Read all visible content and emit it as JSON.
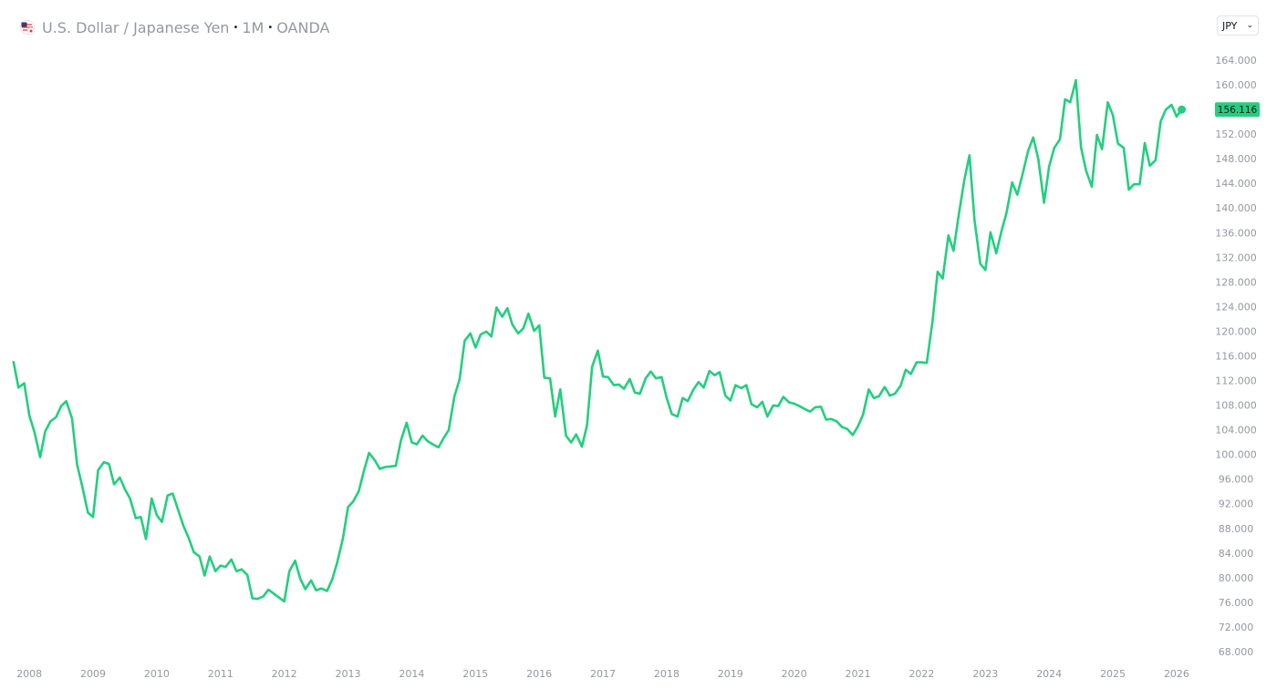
{
  "header": {
    "title": "U.S. Dollar / Japanese Yen",
    "separator": "•",
    "interval": "1M",
    "source": "OANDA"
  },
  "currency_selector": "JPY",
  "chart_data": {
    "type": "line",
    "color": "#22cf7f",
    "grid": false,
    "xlim": [
      2007.54,
      2026.43
    ],
    "ylim": [
      65.93,
      166.51
    ],
    "xticks": [
      2008,
      2009,
      2010,
      2011,
      2012,
      2013,
      2014,
      2015,
      2016,
      2017,
      2018,
      2019,
      2020,
      2021,
      2022,
      2023,
      2024,
      2025,
      2026
    ],
    "yticks": [
      {
        "value": 68,
        "label": "68.000"
      },
      {
        "value": 72,
        "label": "72.000"
      },
      {
        "value": 76,
        "label": "76.000"
      },
      {
        "value": 80,
        "label": "80.000"
      },
      {
        "value": 84,
        "label": "84.000"
      },
      {
        "value": 88,
        "label": "88.000"
      },
      {
        "value": 92,
        "label": "92.000"
      },
      {
        "value": 96,
        "label": "96.000"
      },
      {
        "value": 100,
        "label": "100.000"
      },
      {
        "value": 104,
        "label": "104.000"
      },
      {
        "value": 108,
        "label": "108.000"
      },
      {
        "value": 112,
        "label": "112.000"
      },
      {
        "value": 116,
        "label": "116.000"
      },
      {
        "value": 120,
        "label": "120.000"
      },
      {
        "value": 124,
        "label": "124.000"
      },
      {
        "value": 128,
        "label": "128.000"
      },
      {
        "value": 132,
        "label": "132.000"
      },
      {
        "value": 136,
        "label": "136.000"
      },
      {
        "value": 140,
        "label": "140.000"
      },
      {
        "value": 144,
        "label": "144.000"
      },
      {
        "value": 148,
        "label": "148.000"
      },
      {
        "value": 152,
        "label": "152.000"
      },
      {
        "value": 156,
        "label": "156.000"
      },
      {
        "value": 160,
        "label": "160.000"
      },
      {
        "value": 164,
        "label": "164.000"
      }
    ],
    "x": [
      2007.75,
      2007.83,
      2007.92,
      2008,
      2008.08,
      2008.17,
      2008.25,
      2008.33,
      2008.42,
      2008.5,
      2008.58,
      2008.67,
      2008.75,
      2008.83,
      2008.92,
      2009,
      2009.08,
      2009.17,
      2009.25,
      2009.33,
      2009.42,
      2009.5,
      2009.58,
      2009.67,
      2009.75,
      2009.83,
      2009.92,
      2010,
      2010.08,
      2010.17,
      2010.25,
      2010.33,
      2010.42,
      2010.5,
      2010.58,
      2010.67,
      2010.75,
      2010.83,
      2010.92,
      2011,
      2011.08,
      2011.17,
      2011.25,
      2011.33,
      2011.42,
      2011.5,
      2011.58,
      2011.67,
      2011.75,
      2011.83,
      2011.92,
      2012,
      2012.08,
      2012.17,
      2012.25,
      2012.33,
      2012.42,
      2012.5,
      2012.58,
      2012.67,
      2012.75,
      2012.83,
      2012.92,
      2013,
      2013.08,
      2013.17,
      2013.25,
      2013.33,
      2013.42,
      2013.5,
      2013.58,
      2013.67,
      2013.75,
      2013.83,
      2013.92,
      2014,
      2014.08,
      2014.17,
      2014.25,
      2014.33,
      2014.42,
      2014.5,
      2014.58,
      2014.67,
      2014.75,
      2014.83,
      2014.92,
      2015,
      2015.08,
      2015.17,
      2015.25,
      2015.33,
      2015.42,
      2015.5,
      2015.58,
      2015.67,
      2015.75,
      2015.83,
      2015.92,
      2016,
      2016.08,
      2016.17,
      2016.25,
      2016.33,
      2016.42,
      2016.5,
      2016.58,
      2016.67,
      2016.75,
      2016.83,
      2016.92,
      2017,
      2017.08,
      2017.17,
      2017.25,
      2017.33,
      2017.42,
      2017.5,
      2017.58,
      2017.67,
      2017.75,
      2017.83,
      2017.92,
      2018,
      2018.08,
      2018.17,
      2018.25,
      2018.33,
      2018.42,
      2018.5,
      2018.58,
      2018.67,
      2018.75,
      2018.83,
      2018.92,
      2019,
      2019.08,
      2019.17,
      2019.25,
      2019.33,
      2019.42,
      2019.5,
      2019.58,
      2019.67,
      2019.75,
      2019.83,
      2019.92,
      2020,
      2020.08,
      2020.17,
      2020.25,
      2020.33,
      2020.42,
      2020.5,
      2020.58,
      2020.67,
      2020.75,
      2020.83,
      2020.92,
      2021,
      2021.08,
      2021.17,
      2021.25,
      2021.33,
      2021.42,
      2021.5,
      2021.58,
      2021.67,
      2021.75,
      2021.83,
      2021.92,
      2022,
      2022.08,
      2022.17,
      2022.25,
      2022.33,
      2022.42,
      2022.5,
      2022.58,
      2022.67,
      2022.75,
      2022.83,
      2022.92,
      2023,
      2023.08,
      2023.17,
      2023.25,
      2023.33,
      2023.42,
      2023.5,
      2023.58,
      2023.67,
      2023.75,
      2023.83,
      2023.92,
      2024,
      2024.08,
      2024.17,
      2024.25,
      2024.33,
      2024.42,
      2024.5,
      2024.58,
      2024.67,
      2024.75,
      2024.83,
      2024.92,
      2025,
      2025.08,
      2025.17,
      2025.25,
      2025.33,
      2025.42,
      2025.5,
      2025.58,
      2025.67,
      2025.75,
      2025.83,
      2025.92,
      2026,
      2026.08
    ],
    "values": [
      115.3,
      111,
      111.7,
      106.5,
      103.8,
      99.7,
      103.9,
      105.5,
      106.2,
      108,
      108.8,
      106,
      98.5,
      95,
      90.7,
      90.0,
      97.6,
      98.9,
      98.6,
      95.3,
      96.4,
      94.5,
      93,
      89.8,
      90,
      86.4,
      93,
      90.3,
      89.2,
      93.5,
      93.8,
      91.3,
      88.5,
      86.6,
      84.3,
      83.6,
      80.5,
      83.6,
      81.2,
      82.1,
      81.9,
      83.1,
      81.2,
      81.5,
      80.6,
      76.8,
      76.7,
      77.1,
      78.2,
      77.6,
      76.9,
      76.3,
      81.2,
      82.9,
      80,
      78.3,
      79.7,
      78.1,
      78.4,
      78,
      79.8,
      82.6,
      86.5,
      91.6,
      92.5,
      94.2,
      97.5,
      100.4,
      99.2,
      97.8,
      98.1,
      98.2,
      98.3,
      102.4,
      105.3,
      102.1,
      101.8,
      103.2,
      102.3,
      101.8,
      101.3,
      102.8,
      104.1,
      109.6,
      112.3,
      118.6,
      119.8,
      117.5,
      119.6,
      120.1,
      119.3,
      124,
      122.5,
      123.9,
      121.2,
      119.8,
      120.6,
      123,
      120.2,
      121.1,
      112.6,
      112.5,
      106.3,
      110.7,
      103.2,
      102.1,
      103.4,
      101.4,
      104.9,
      114.4,
      117,
      112.8,
      112.7,
      111.4,
      111.5,
      110.8,
      112.4,
      110.2,
      110,
      112.5,
      113.6,
      112.5,
      112.7,
      109.3,
      106.7,
      106.3,
      109.3,
      108.8,
      110.7,
      111.9,
      111,
      113.7,
      113,
      113.5,
      109.7,
      108.9,
      111.4,
      110.9,
      111.4,
      108.3,
      107.8,
      108.7,
      106.3,
      108.1,
      108,
      109.5,
      108.6,
      108.4,
      108,
      107.5,
      107.1,
      107.8,
      107.9,
      105.8,
      105.9,
      105.5,
      104.6,
      104.3,
      103.3,
      104.7,
      106.6,
      110.7,
      109.3,
      109.6,
      111.1,
      109.7,
      110,
      111.3,
      113.9,
      113.2,
      115.1,
      115.1,
      115,
      121.7,
      129.8,
      128.7,
      135.7,
      133.2,
      138.9,
      144.7,
      148.7,
      138.1,
      131.1,
      130.1,
      136.2,
      132.8,
      136.3,
      139.3,
      144.3,
      142.3,
      145.5,
      149.4,
      151.6,
      148.1,
      141,
      146.9,
      149.9,
      151.3,
      157.8,
      157.3,
      160.9,
      150,
      146.2,
      143.6,
      152,
      149.7,
      157.3,
      155.2,
      150.6,
      149.9,
      143.1,
      144,
      144,
      150.7,
      147,
      147.9,
      154.2,
      156.1,
      156.9,
      155.0,
      156.116
    ]
  }
}
